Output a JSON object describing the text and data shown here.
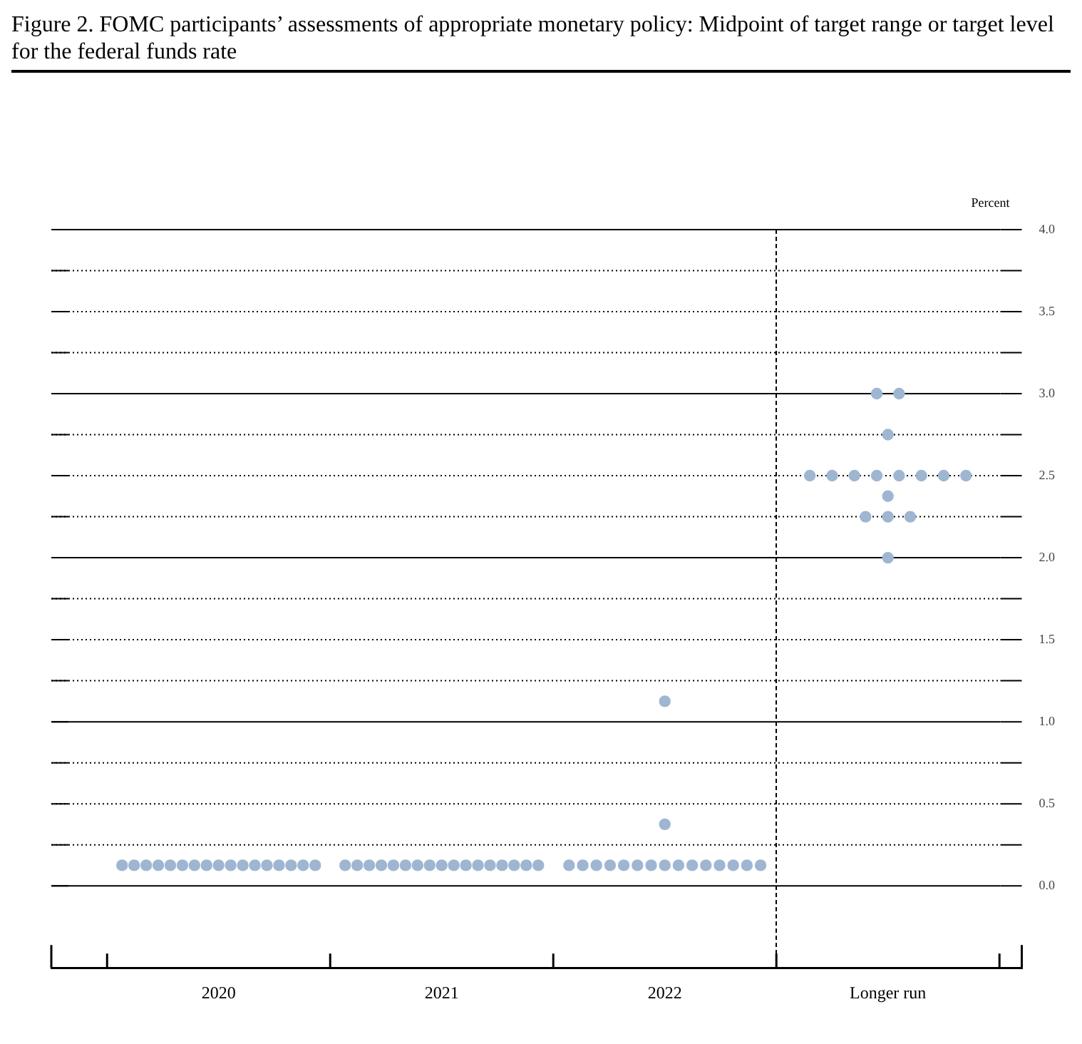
{
  "chart_data": {
    "type": "scatter",
    "title": "Figure 2.  FOMC participants’ assessments of appropriate monetary policy: Midpoint of target range or target level for the federal funds rate",
    "ylabel": "Percent",
    "categories": [
      "2020",
      "2021",
      "2022",
      "Longer run"
    ],
    "series": [
      {
        "color": "#9fb6d2",
        "values": [
          0.125,
          0.125,
          0.125,
          3.0
        ]
      },
      {
        "color": "#9fb6d2",
        "values": [
          0.125,
          0.125,
          0.125,
          3.0
        ]
      },
      {
        "color": "#9fb6d2",
        "values": [
          0.125,
          0.125,
          0.125,
          2.75
        ]
      },
      {
        "color": "#9fb6d2",
        "values": [
          0.125,
          0.125,
          0.125,
          2.5
        ]
      },
      {
        "color": "#9fb6d2",
        "values": [
          0.125,
          0.125,
          0.125,
          2.5
        ]
      },
      {
        "color": "#9fb6d2",
        "values": [
          0.125,
          0.125,
          0.125,
          2.5
        ]
      },
      {
        "color": "#9fb6d2",
        "values": [
          0.125,
          0.125,
          0.125,
          2.5
        ]
      },
      {
        "color": "#9fb6d2",
        "values": [
          0.125,
          0.125,
          0.125,
          2.5
        ]
      },
      {
        "color": "#9fb6d2",
        "values": [
          0.125,
          0.125,
          0.125,
          2.5
        ]
      },
      {
        "color": "#9fb6d2",
        "values": [
          0.125,
          0.125,
          0.125,
          2.5
        ]
      },
      {
        "color": "#9fb6d2",
        "values": [
          0.125,
          0.125,
          0.125,
          2.5
        ]
      },
      {
        "color": "#9fb6d2",
        "values": [
          0.125,
          0.125,
          0.125,
          2.375
        ]
      },
      {
        "color": "#9fb6d2",
        "values": [
          0.125,
          0.125,
          0.125,
          2.25
        ]
      },
      {
        "color": "#9fb6d2",
        "values": [
          0.125,
          0.125,
          0.125,
          2.25
        ]
      },
      {
        "color": "#9fb6d2",
        "values": [
          0.125,
          0.125,
          0.125,
          2.25
        ]
      },
      {
        "color": "#9fb6d2",
        "values": [
          0.125,
          0.125,
          0.375,
          2.0
        ]
      },
      {
        "color": "#9fb6d2",
        "values": [
          0.125,
          0.125,
          1.125,
          null
        ]
      }
    ],
    "ylim": [
      -0.5,
      4.0
    ],
    "yticks": [
      {
        "value": 0,
        "label": "0.0"
      },
      {
        "value": 0.25,
        "label": null
      },
      {
        "value": 0.5,
        "label": "0.5"
      },
      {
        "value": 0.75,
        "label": null
      },
      {
        "value": 1.0,
        "label": "1.0"
      },
      {
        "value": 1.25,
        "label": null
      },
      {
        "value": 1.5,
        "label": "1.5"
      },
      {
        "value": 1.75,
        "label": null
      },
      {
        "value": 2.0,
        "label": "2.0"
      },
      {
        "value": 2.25,
        "label": null
      },
      {
        "value": 2.5,
        "label": "2.5"
      },
      {
        "value": 2.75,
        "label": null
      },
      {
        "value": 3.0,
        "label": "3.0"
      },
      {
        "value": 3.25,
        "label": null
      },
      {
        "value": 3.5,
        "label": "3.5"
      },
      {
        "value": 3.75,
        "label": null
      },
      {
        "value": 4.0,
        "label": "4.0"
      }
    ],
    "grid": "y",
    "marker": "circle",
    "legend": false
  }
}
